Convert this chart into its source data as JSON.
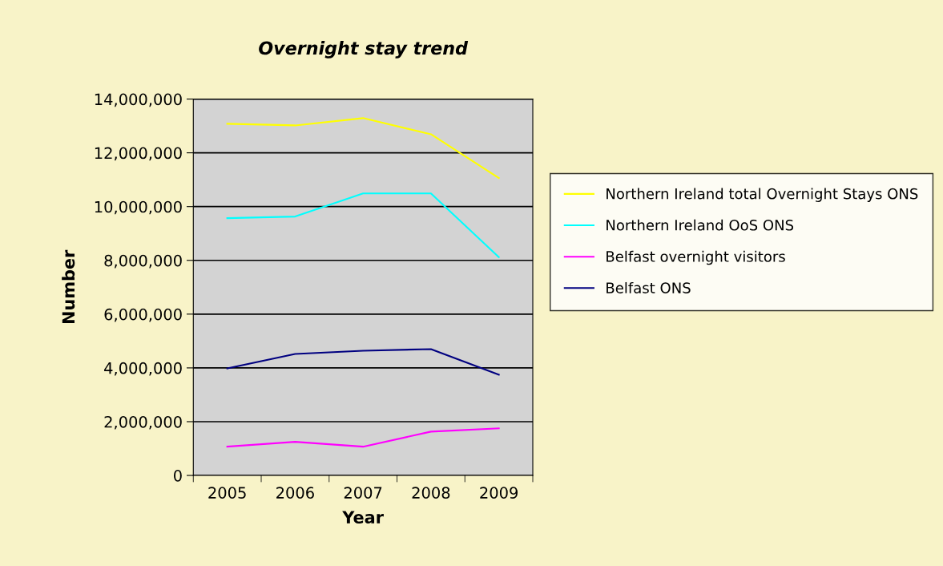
{
  "chart_data": {
    "type": "line",
    "title": "Overnight stay trend",
    "xlabel": "Year",
    "ylabel": "Number",
    "categories": [
      "2005",
      "2006",
      "2007",
      "2008",
      "2009"
    ],
    "series": [
      {
        "name": "Northern Ireland total Overnight Stays ONS",
        "color": "#ffff00",
        "values": [
          13080000,
          13020000,
          13290000,
          12690000,
          11060000
        ]
      },
      {
        "name": "Northern Ireland OoS ONS",
        "color": "#00ffff",
        "values": [
          9570000,
          9630000,
          10490000,
          10490000,
          8120000
        ]
      },
      {
        "name": "Belfast overnight visitors",
        "color": "#ff00ff",
        "values": [
          1070000,
          1250000,
          1070000,
          1630000,
          1750000
        ]
      },
      {
        "name": "Belfast ONS",
        "color": "#000080",
        "values": [
          3980000,
          4520000,
          4640000,
          4700000,
          3750000
        ]
      }
    ],
    "ylim": [
      0,
      14000000
    ],
    "yticks": [
      {
        "value": 0,
        "label": "0"
      },
      {
        "value": 2000000,
        "label": "2,000,000"
      },
      {
        "value": 4000000,
        "label": "4,000,000"
      },
      {
        "value": 6000000,
        "label": "6,000,000"
      },
      {
        "value": 8000000,
        "label": "8,000,000"
      },
      {
        "value": 10000000,
        "label": "10,000,000"
      },
      {
        "value": 12000000,
        "label": "12,000,000"
      },
      {
        "value": 14000000,
        "label": "14,000,000"
      }
    ],
    "grid": "y",
    "legend": "right",
    "marker": "none",
    "line_style": "solid"
  }
}
